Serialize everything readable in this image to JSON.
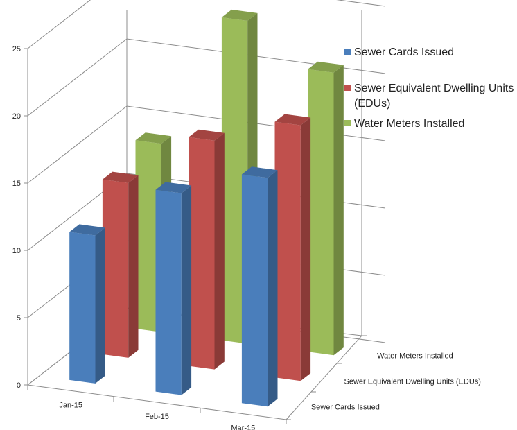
{
  "chart_data": {
    "type": "bar",
    "subtype": "3d-column",
    "categories": [
      "Jan-15",
      "Feb-15",
      "Mar-15"
    ],
    "depth_labels": [
      "Water Meters Installed",
      "Sewer Equivalent Dwelling Units (EDUs)",
      "Sewer Cards Issued"
    ],
    "series": [
      {
        "name": "Sewer Cards Issued",
        "values": [
          11,
          15,
          17
        ],
        "color": "#4a7ebb"
      },
      {
        "name": "Sewer Equivalent Dwelling Units (EDUs)",
        "values": [
          13,
          17,
          19
        ],
        "color": "#c0504d"
      },
      {
        "name": "Water Meters Installed",
        "values": [
          14,
          24,
          21
        ],
        "color": "#9bbb59"
      }
    ],
    "ylim": [
      0,
      25
    ],
    "yticks": [
      "0",
      "5",
      "10",
      "15",
      "20",
      "25"
    ],
    "grid": true,
    "legend_position": "top-right",
    "legend": {
      "item1": "Sewer Cards Issued",
      "item2_line1": "Sewer Equivalent Dwelling Units",
      "item2_line2": "(EDUs)",
      "item3": "Water Meters Installed"
    }
  }
}
